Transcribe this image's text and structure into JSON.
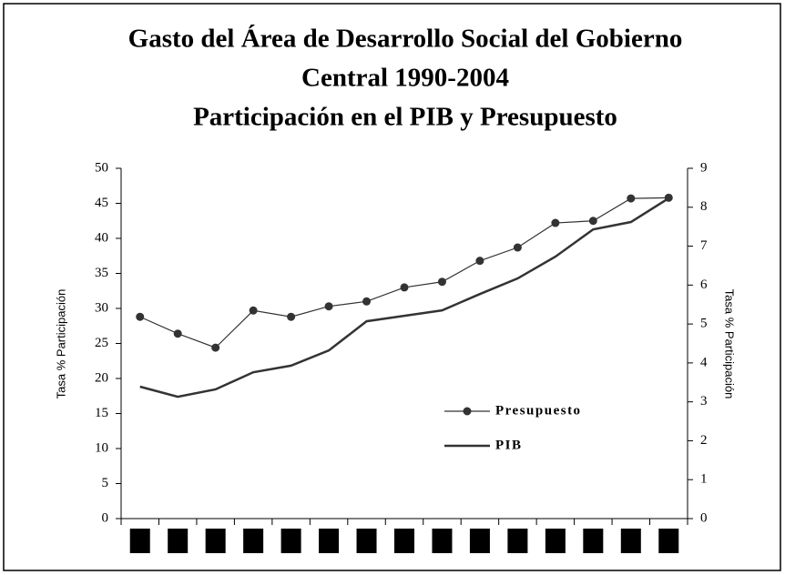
{
  "chart_data": {
    "type": "line",
    "title": [
      "Gasto del Área de Desarrollo Social del Gobierno",
      "Central 1990-2004",
      "Participación en el PIB y Presupuesto"
    ],
    "ylabel": "Tasa % Participación",
    "y2label": "Tasa % Participación",
    "categories": [
      null,
      null,
      null,
      null,
      null,
      null,
      null,
      null,
      null,
      null,
      null,
      null,
      null,
      null,
      null
    ],
    "ylim": [
      0,
      50
    ],
    "yticks": [
      0,
      5,
      10,
      15,
      20,
      25,
      30,
      35,
      40,
      45,
      50
    ],
    "y2lim": [
      0,
      9
    ],
    "y2ticks": [
      0,
      1,
      2,
      3,
      4,
      5,
      6,
      7,
      8,
      9
    ],
    "legend": "center-right",
    "series": [
      {
        "name": "Presupuesto",
        "color": "#333333",
        "marker": true,
        "values": [
          28.8,
          26.4,
          24.4,
          29.7,
          28.8,
          30.3,
          31.0,
          33.0,
          33.8,
          36.8,
          38.7,
          42.2,
          42.5,
          45.7,
          45.8
        ]
      },
      {
        "name": "PIB",
        "color": "#333333",
        "axis": "y2",
        "marker": false,
        "values": [
          3.39,
          3.13,
          3.32,
          3.76,
          3.93,
          4.32,
          5.07,
          5.21,
          5.35,
          5.77,
          6.17,
          6.73,
          7.43,
          7.62,
          8.23
        ]
      }
    ]
  }
}
